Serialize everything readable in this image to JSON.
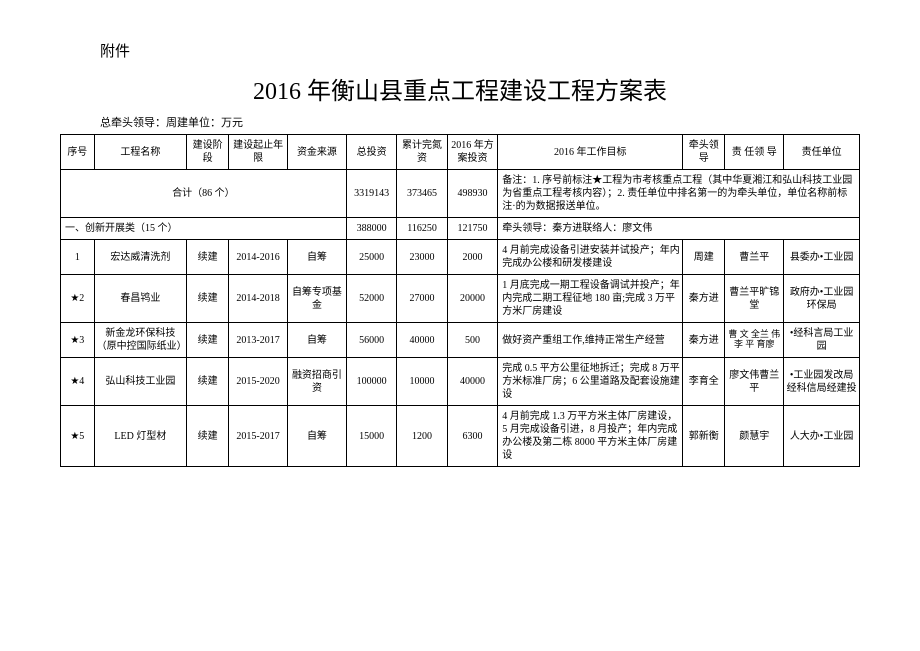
{
  "attachment_label": "附件",
  "title": "2016 年衡山县重点工程建设工程方案表",
  "subtitle": "总牵头领导：周建单位：万元",
  "headers": {
    "seq": "序号",
    "name": "工程名称",
    "phase": "建设阶段",
    "period": "建设起止年限",
    "fund_source": "资金来源",
    "total_invest": "总投资",
    "cum_invest": "累计完氮资",
    "plan_invest": "2016 年方案投资",
    "target": "2016 年工作目标",
    "lead": "牵头领导",
    "resp_lead": "责 任领 导",
    "resp_unit": "责任单位"
  },
  "total_row": {
    "label": "合计（86 个）",
    "total_invest": "3319143",
    "cum_invest": "373465",
    "plan_invest": "498930",
    "note": "备注：1. 序号前标注★工程为市考核重点工程（其中华夏湘江和弘山科技工业园为省重点工程考核内容）；2. 责任单位中排名第一的为牵头单位，单位名称前标注·的为数据报送单位。"
  },
  "section": {
    "label": "一、创新开展类（15 个）",
    "total_invest": "388000",
    "cum_invest": "116250",
    "plan_invest": "121750",
    "note": "牵头领导：秦方进联络人：廖文伟"
  },
  "rows": [
    {
      "seq": "1",
      "name": "宏达威清洗剂",
      "phase": "续建",
      "period": "2014-2016",
      "fund": "自筹",
      "total": "25000",
      "cum": "23000",
      "plan": "2000",
      "target": "4 月前完成设备引进安装并试投产；年内完成办公楼和研发楼建设",
      "lead": "周建",
      "resp": "曹兰平",
      "unit": "县委办•工业园"
    },
    {
      "seq": "★2",
      "name": "春昌鸨业",
      "phase": "续建",
      "period": "2014-2018",
      "fund": "自筹专项基金",
      "total": "52000",
      "cum": "27000",
      "plan": "20000",
      "target": "1 月底完成一期工程设备调试并投产；年内完成二期工程征地 180 亩;完成 3 万平方米厂房建设",
      "lead": "秦方进",
      "resp": "曹兰平旷锦堂",
      "unit": "政府办•工业园环保局"
    },
    {
      "seq": "★3",
      "name": "新金龙环保科技（原中控国际纸业）",
      "phase": "续建",
      "period": "2013-2017",
      "fund": "自筹",
      "total": "56000",
      "cum": "40000",
      "plan": "500",
      "target": "做好资产重组工作,维持正常生产经营",
      "lead": "秦方进",
      "resp": "曹 文 全兰 伟李 平 育廖",
      "unit": "•经科言局工业园"
    },
    {
      "seq": "★4",
      "name": "弘山科技工业园",
      "phase": "续建",
      "period": "2015-2020",
      "fund": "融资招商引资",
      "total": "100000",
      "cum": "10000",
      "plan": "40000",
      "target": "完成 0.5 平方公里征地拆迁；完成 8 万平方米标准厂房；6 公里道路及配套设施建设",
      "lead": "李育全",
      "resp": "廖文伟曹兰平",
      "unit": "•工业园发改局经科信局经建投"
    },
    {
      "seq": "★5",
      "name": "LED 灯型材",
      "phase": "续建",
      "period": "2015-2017",
      "fund": "自筹",
      "total": "15000",
      "cum": "1200",
      "plan": "6300",
      "target": "4 月前完成 1.3 万平方米主体厂房建设，5 月完成设备引进，8 月投产；年内完成办公楼及第二栋 8000 平方米主体厂房建设",
      "lead": "郭新衡",
      "resp": "颜慧宇",
      "unit": "人大办•工业园"
    }
  ]
}
